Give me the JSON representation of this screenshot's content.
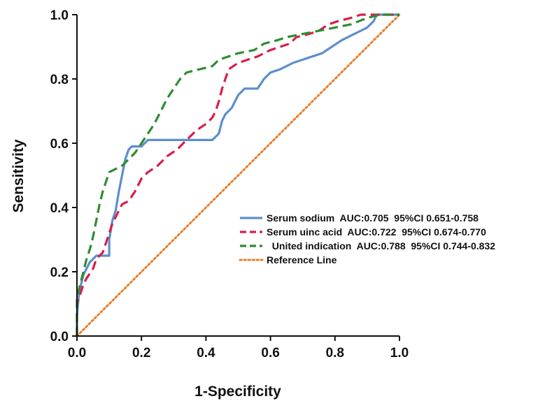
{
  "chart_data": {
    "type": "line",
    "title": "",
    "xlabel": "1-Specificity",
    "ylabel": "Sensitivity",
    "xlim": [
      0,
      1
    ],
    "ylim": [
      0,
      1
    ],
    "xticks": [
      "0.0",
      "0.2",
      "0.4",
      "0.6",
      "0.8",
      "1.0"
    ],
    "yticks": [
      "0.0",
      "0.2",
      "0.4",
      "0.6",
      "0.8",
      "1.0"
    ],
    "grid": false,
    "legend_position": "right",
    "series": [
      {
        "name": "Serum sodium  AUC:0.705  95%CI 0.651-0.758",
        "color": "#5b8fcc",
        "dash": "solid",
        "points": [
          [
            0,
            0
          ],
          [
            0,
            0.06
          ],
          [
            0.005,
            0.12
          ],
          [
            0.01,
            0.15
          ],
          [
            0.02,
            0.19
          ],
          [
            0.03,
            0.21
          ],
          [
            0.04,
            0.23
          ],
          [
            0.05,
            0.24
          ],
          [
            0.06,
            0.25
          ],
          [
            0.1,
            0.25
          ],
          [
            0.1,
            0.3
          ],
          [
            0.105,
            0.33
          ],
          [
            0.11,
            0.36
          ],
          [
            0.12,
            0.39
          ],
          [
            0.13,
            0.45
          ],
          [
            0.14,
            0.5
          ],
          [
            0.15,
            0.55
          ],
          [
            0.16,
            0.58
          ],
          [
            0.17,
            0.59
          ],
          [
            0.2,
            0.59
          ],
          [
            0.22,
            0.61
          ],
          [
            0.42,
            0.61
          ],
          [
            0.43,
            0.62
          ],
          [
            0.44,
            0.63
          ],
          [
            0.45,
            0.67
          ],
          [
            0.46,
            0.69
          ],
          [
            0.48,
            0.71
          ],
          [
            0.5,
            0.75
          ],
          [
            0.52,
            0.77
          ],
          [
            0.56,
            0.77
          ],
          [
            0.58,
            0.8
          ],
          [
            0.6,
            0.82
          ],
          [
            0.63,
            0.83
          ],
          [
            0.65,
            0.84
          ],
          [
            0.67,
            0.85
          ],
          [
            0.7,
            0.86
          ],
          [
            0.73,
            0.87
          ],
          [
            0.76,
            0.88
          ],
          [
            0.79,
            0.9
          ],
          [
            0.82,
            0.92
          ],
          [
            0.84,
            0.93
          ],
          [
            0.86,
            0.94
          ],
          [
            0.88,
            0.95
          ],
          [
            0.9,
            0.96
          ],
          [
            0.92,
            0.98
          ],
          [
            0.93,
            1.0
          ],
          [
            1.0,
            1.0
          ]
        ]
      },
      {
        "name": "Serum uinc acid  AUC:0.722  95%CI 0.674-0.770",
        "color": "#d81e4a",
        "dash": "long-dash",
        "points": [
          [
            0,
            0
          ],
          [
            0,
            0.1
          ],
          [
            0.01,
            0.13
          ],
          [
            0.02,
            0.16
          ],
          [
            0.03,
            0.18
          ],
          [
            0.05,
            0.21
          ],
          [
            0.06,
            0.24
          ],
          [
            0.08,
            0.26
          ],
          [
            0.09,
            0.29
          ],
          [
            0.1,
            0.32
          ],
          [
            0.11,
            0.35
          ],
          [
            0.12,
            0.37
          ],
          [
            0.13,
            0.39
          ],
          [
            0.14,
            0.41
          ],
          [
            0.16,
            0.42
          ],
          [
            0.18,
            0.45
          ],
          [
            0.2,
            0.49
          ],
          [
            0.22,
            0.51
          ],
          [
            0.25,
            0.53
          ],
          [
            0.28,
            0.56
          ],
          [
            0.31,
            0.58
          ],
          [
            0.33,
            0.6
          ],
          [
            0.35,
            0.62
          ],
          [
            0.37,
            0.64
          ],
          [
            0.4,
            0.66
          ],
          [
            0.42,
            0.68
          ],
          [
            0.43,
            0.7
          ],
          [
            0.44,
            0.73
          ],
          [
            0.45,
            0.77
          ],
          [
            0.46,
            0.8
          ],
          [
            0.47,
            0.83
          ],
          [
            0.5,
            0.85
          ],
          [
            0.53,
            0.86
          ],
          [
            0.56,
            0.87
          ],
          [
            0.6,
            0.89
          ],
          [
            0.63,
            0.9
          ],
          [
            0.66,
            0.91
          ],
          [
            0.68,
            0.93
          ],
          [
            0.72,
            0.94
          ],
          [
            0.75,
            0.95
          ],
          [
            0.78,
            0.97
          ],
          [
            0.81,
            0.98
          ],
          [
            0.85,
            0.99
          ],
          [
            0.88,
            1.0
          ],
          [
            1.0,
            1.0
          ]
        ]
      },
      {
        "name": "  United indication  AUC:0.788  95%CI 0.744-0.832",
        "color": "#2f8c2f",
        "dash": "long-dash",
        "points": [
          [
            0,
            0
          ],
          [
            0,
            0.12
          ],
          [
            0.01,
            0.16
          ],
          [
            0.02,
            0.2
          ],
          [
            0.03,
            0.24
          ],
          [
            0.04,
            0.27
          ],
          [
            0.05,
            0.31
          ],
          [
            0.06,
            0.36
          ],
          [
            0.07,
            0.41
          ],
          [
            0.08,
            0.45
          ],
          [
            0.09,
            0.48
          ],
          [
            0.1,
            0.51
          ],
          [
            0.12,
            0.52
          ],
          [
            0.14,
            0.53
          ],
          [
            0.16,
            0.55
          ],
          [
            0.18,
            0.57
          ],
          [
            0.2,
            0.6
          ],
          [
            0.22,
            0.63
          ],
          [
            0.24,
            0.66
          ],
          [
            0.26,
            0.7
          ],
          [
            0.28,
            0.74
          ],
          [
            0.3,
            0.77
          ],
          [
            0.32,
            0.8
          ],
          [
            0.34,
            0.82
          ],
          [
            0.38,
            0.83
          ],
          [
            0.42,
            0.84
          ],
          [
            0.44,
            0.86
          ],
          [
            0.47,
            0.87
          ],
          [
            0.5,
            0.88
          ],
          [
            0.55,
            0.89
          ],
          [
            0.58,
            0.91
          ],
          [
            0.62,
            0.92
          ],
          [
            0.65,
            0.93
          ],
          [
            0.7,
            0.94
          ],
          [
            0.75,
            0.95
          ],
          [
            0.8,
            0.96
          ],
          [
            0.85,
            0.97
          ],
          [
            0.9,
            0.99
          ],
          [
            0.94,
            1.0
          ],
          [
            1.0,
            1.0
          ]
        ]
      },
      {
        "name": "Reference Line",
        "color": "#e8802e",
        "dash": "dotted",
        "points": [
          [
            0,
            0
          ],
          [
            1,
            1
          ]
        ]
      }
    ]
  }
}
